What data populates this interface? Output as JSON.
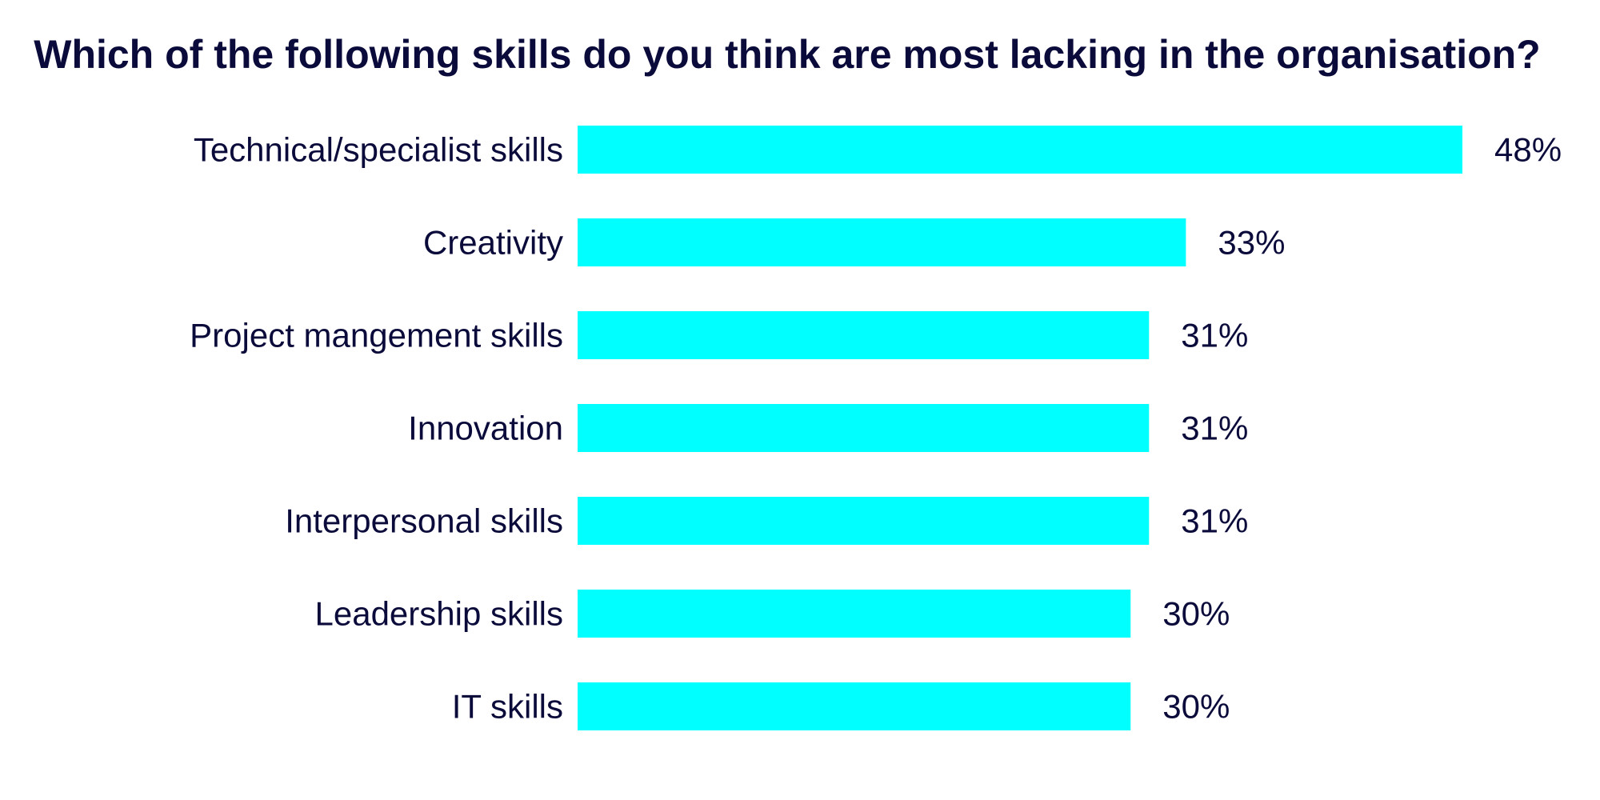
{
  "chart_data": {
    "type": "bar",
    "orientation": "horizontal",
    "title": "Which of the following skills do you think are most lacking in the organisation?",
    "categories": [
      "Technical/specialist skills",
      "Creativity",
      "Project mangement skills",
      "Innovation",
      "Interpersonal skills",
      "Leadership skills",
      "IT skills"
    ],
    "values": [
      48,
      33,
      31,
      31,
      31,
      30,
      30
    ],
    "value_labels": [
      "48%",
      "33%",
      "31%",
      "31%",
      "31%",
      "30%",
      "30%"
    ],
    "unit": "%",
    "xlim": [
      0,
      48
    ],
    "grid": false,
    "legend": "none"
  },
  "colors": {
    "bar": "#00ffff",
    "text": "#0b0b3b",
    "background": "#ffffff"
  }
}
